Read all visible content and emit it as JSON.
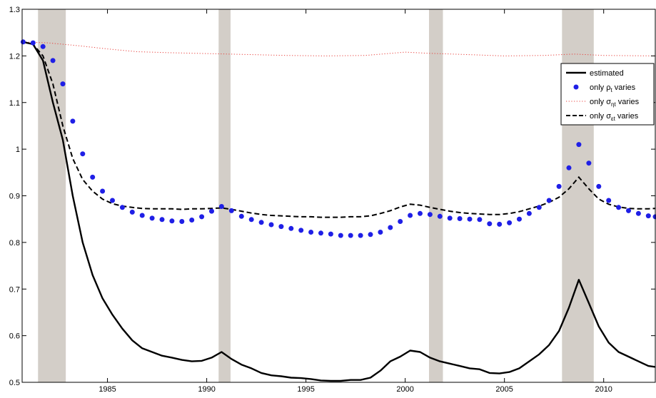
{
  "chart_data": {
    "type": "line",
    "title": "",
    "xlabel": "",
    "ylabel": "",
    "xlim": [
      1980.7,
      2012.6
    ],
    "ylim": [
      0.5,
      1.3
    ],
    "x_ticks": [
      1985,
      1990,
      1995,
      2000,
      2005,
      2010
    ],
    "x_tick_labels": [
      "1985",
      "1990",
      "1995",
      "2000",
      "2005",
      "2010"
    ],
    "y_ticks": [
      0.5,
      0.6,
      0.7,
      0.8,
      0.9,
      1.0,
      1.1,
      1.2,
      1.3
    ],
    "y_tick_labels": [
      "0.5",
      "0.6",
      "0.7",
      "0.8",
      "0.9",
      "1",
      "1.1",
      "1.2",
      "1.3"
    ],
    "grid": false,
    "legend_position": "top-right",
    "recession_bands": [
      [
        1981.5,
        1982.9
      ],
      [
        1990.6,
        1991.2
      ],
      [
        2001.2,
        2001.9
      ],
      [
        2007.9,
        2009.5
      ]
    ],
    "colors": {
      "recession": "#d3cec8",
      "estimated": "#000000",
      "rho": "#1f1fe6",
      "sigma_eta": "#e8403c",
      "sigma_eps": "#000000"
    },
    "series": [
      {
        "key": "estimated",
        "legend_label": "estimated",
        "style": "solid",
        "x": [
          1980.75,
          1981.25,
          1981.75,
          1982.25,
          1982.75,
          1983.25,
          1983.75,
          1984.25,
          1984.75,
          1985.25,
          1985.75,
          1986.25,
          1986.75,
          1987.25,
          1987.75,
          1988.25,
          1988.75,
          1989.25,
          1989.75,
          1990.25,
          1990.75,
          1991.25,
          1991.75,
          1992.25,
          1992.75,
          1993.25,
          1993.75,
          1994.25,
          1994.75,
          1995.25,
          1995.75,
          1996.25,
          1996.75,
          1997.25,
          1997.75,
          1998.25,
          1998.75,
          1999.25,
          1999.75,
          2000.25,
          2000.75,
          2001.25,
          2001.75,
          2002.25,
          2002.75,
          2003.25,
          2003.75,
          2004.25,
          2004.75,
          2005.25,
          2005.75,
          2006.25,
          2006.75,
          2007.25,
          2007.75,
          2008.25,
          2008.75,
          2009.25,
          2009.75,
          2010.25,
          2010.75,
          2011.25,
          2011.75,
          2012.25,
          2012.6
        ],
        "y": [
          1.23,
          1.225,
          1.19,
          1.1,
          1.02,
          0.9,
          0.8,
          0.73,
          0.68,
          0.645,
          0.615,
          0.59,
          0.573,
          0.565,
          0.557,
          0.553,
          0.548,
          0.545,
          0.546,
          0.553,
          0.565,
          0.55,
          0.538,
          0.53,
          0.52,
          0.515,
          0.513,
          0.51,
          0.509,
          0.507,
          0.504,
          0.503,
          0.503,
          0.505,
          0.505,
          0.51,
          0.525,
          0.545,
          0.555,
          0.568,
          0.565,
          0.553,
          0.545,
          0.54,
          0.535,
          0.53,
          0.528,
          0.52,
          0.519,
          0.522,
          0.53,
          0.545,
          0.56,
          0.58,
          0.61,
          0.66,
          0.72,
          0.67,
          0.62,
          0.585,
          0.565,
          0.555,
          0.545,
          0.535,
          0.533
        ]
      },
      {
        "key": "rho",
        "legend_label": "only ρ",
        "legend_sub": "t",
        "legend_suffix": " varies",
        "style": "dots",
        "x": [
          1980.75,
          1981.25,
          1981.75,
          1982.25,
          1982.75,
          1983.25,
          1983.75,
          1984.25,
          1984.75,
          1985.25,
          1985.75,
          1986.25,
          1986.75,
          1987.25,
          1987.75,
          1988.25,
          1988.75,
          1989.25,
          1989.75,
          1990.25,
          1990.75,
          1991.25,
          1991.75,
          1992.25,
          1992.75,
          1993.25,
          1993.75,
          1994.25,
          1994.75,
          1995.25,
          1995.75,
          1996.25,
          1996.75,
          1997.25,
          1997.75,
          1998.25,
          1998.75,
          1999.25,
          1999.75,
          2000.25,
          2000.75,
          2001.25,
          2001.75,
          2002.25,
          2002.75,
          2003.25,
          2003.75,
          2004.25,
          2004.75,
          2005.25,
          2005.75,
          2006.25,
          2006.75,
          2007.25,
          2007.75,
          2008.25,
          2008.75,
          2009.25,
          2009.75,
          2010.25,
          2010.75,
          2011.25,
          2011.75,
          2012.25,
          2012.6
        ],
        "y": [
          1.23,
          1.228,
          1.22,
          1.19,
          1.14,
          1.06,
          0.99,
          0.94,
          0.91,
          0.89,
          0.875,
          0.865,
          0.858,
          0.852,
          0.849,
          0.846,
          0.845,
          0.848,
          0.855,
          0.867,
          0.877,
          0.868,
          0.856,
          0.849,
          0.843,
          0.838,
          0.834,
          0.83,
          0.826,
          0.822,
          0.82,
          0.818,
          0.815,
          0.815,
          0.815,
          0.817,
          0.822,
          0.832,
          0.845,
          0.858,
          0.862,
          0.86,
          0.856,
          0.852,
          0.851,
          0.85,
          0.849,
          0.84,
          0.839,
          0.842,
          0.85,
          0.862,
          0.875,
          0.89,
          0.92,
          0.96,
          1.01,
          0.97,
          0.92,
          0.89,
          0.875,
          0.868,
          0.862,
          0.857,
          0.855
        ]
      },
      {
        "key": "sigma_eta",
        "legend_label": "only σ",
        "legend_sub": "ηt",
        "legend_suffix": " varies",
        "style": "dotted",
        "x": [
          1980.75,
          1982,
          1983.5,
          1985,
          1986.5,
          1988,
          1990,
          1992,
          1994,
          1996,
          1998,
          2000,
          2001,
          2003,
          2005,
          2007,
          2008.5,
          2010,
          2012.6
        ],
        "y": [
          1.23,
          1.228,
          1.222,
          1.215,
          1.209,
          1.207,
          1.205,
          1.203,
          1.201,
          1.2,
          1.201,
          1.208,
          1.206,
          1.203,
          1.2,
          1.201,
          1.204,
          1.201,
          1.2
        ]
      },
      {
        "key": "sigma_eps",
        "legend_label": "only σ",
        "legend_sub": "εt",
        "legend_suffix": " varies",
        "style": "dashed",
        "x": [
          1980.75,
          1981.25,
          1981.75,
          1982.25,
          1982.75,
          1983.25,
          1983.75,
          1984.25,
          1984.75,
          1985.25,
          1985.75,
          1986.25,
          1986.75,
          1987.25,
          1987.75,
          1988.25,
          1988.75,
          1989.25,
          1989.75,
          1990.25,
          1990.75,
          1991.25,
          1991.75,
          1992.25,
          1992.75,
          1993.25,
          1993.75,
          1994.25,
          1994.75,
          1995.25,
          1995.75,
          1996.25,
          1996.75,
          1997.25,
          1997.75,
          1998.25,
          1998.75,
          1999.25,
          1999.75,
          2000.25,
          2000.75,
          2001.25,
          2001.75,
          2002.25,
          2002.75,
          2003.25,
          2003.75,
          2004.25,
          2004.75,
          2005.25,
          2005.75,
          2006.25,
          2006.75,
          2007.25,
          2007.75,
          2008.25,
          2008.75,
          2009.25,
          2009.75,
          2010.25,
          2010.75,
          2011.25,
          2011.75,
          2012.25,
          2012.6
        ],
        "y": [
          1.23,
          1.225,
          1.2,
          1.14,
          1.05,
          0.98,
          0.935,
          0.91,
          0.893,
          0.883,
          0.878,
          0.875,
          0.873,
          0.872,
          0.872,
          0.872,
          0.871,
          0.872,
          0.872,
          0.873,
          0.874,
          0.871,
          0.867,
          0.863,
          0.86,
          0.858,
          0.857,
          0.856,
          0.855,
          0.855,
          0.854,
          0.854,
          0.854,
          0.855,
          0.855,
          0.857,
          0.862,
          0.868,
          0.876,
          0.882,
          0.88,
          0.875,
          0.871,
          0.867,
          0.864,
          0.862,
          0.861,
          0.86,
          0.86,
          0.862,
          0.866,
          0.872,
          0.878,
          0.886,
          0.897,
          0.915,
          0.94,
          0.915,
          0.893,
          0.882,
          0.876,
          0.873,
          0.872,
          0.872,
          0.873
        ]
      }
    ]
  }
}
